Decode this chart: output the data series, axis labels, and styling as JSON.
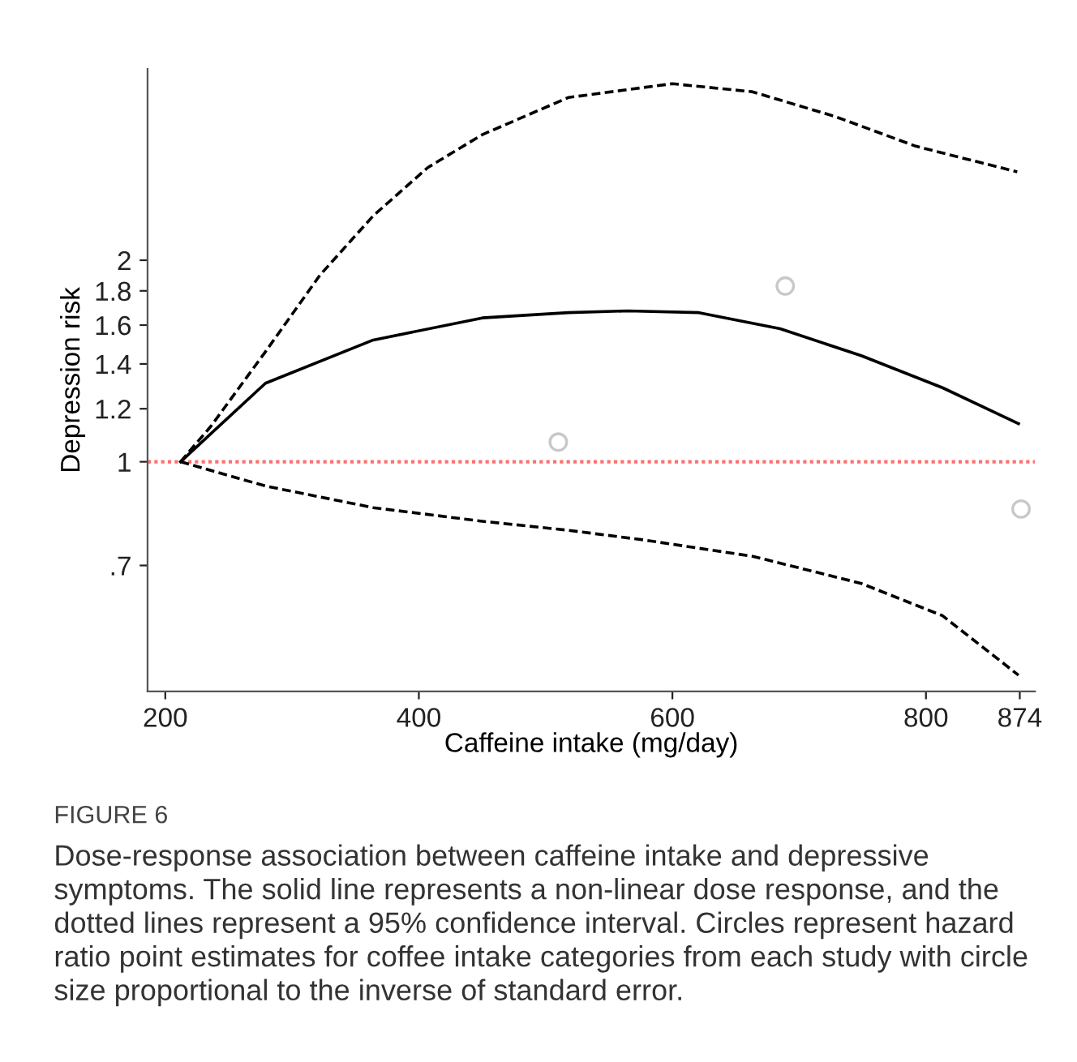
{
  "chart_data": {
    "type": "line",
    "xlabel": "Caffeine intake (mg/day)",
    "ylabel": "Depression risk",
    "log": "y",
    "xlim": [
      186,
      886
    ],
    "ylim": [
      0.454,
      3.86
    ],
    "xticks": [
      200,
      400,
      600,
      800,
      874
    ],
    "yticks": [
      {
        "value": 0.7,
        "label": ".7"
      },
      1,
      1.2,
      1.4,
      1.6,
      1.8,
      2
    ],
    "grid": false,
    "legend": false,
    "series": [
      {
        "color": "#000000",
        "line_style": "solid",
        "marker": "none",
        "x": [
          212,
          279,
          364,
          450,
          518,
          565,
          621,
          685,
          749,
          813,
          873
        ],
        "values": [
          1,
          1.31,
          1.52,
          1.64,
          1.67,
          1.68,
          1.67,
          1.58,
          1.44,
          1.29,
          1.14
        ]
      },
      {
        "color": "#000000",
        "line_style": "dashed",
        "marker": "none",
        "x": [
          212,
          236,
          279,
          322,
          364,
          407,
          450,
          518,
          600,
          663,
          728,
          792,
          872
        ],
        "values": [
          1,
          1.13,
          1.46,
          1.9,
          2.33,
          2.75,
          3.08,
          3.5,
          3.67,
          3.57,
          3.28,
          2.96,
          2.71
        ]
      },
      {
        "color": "#000000",
        "line_style": "dashed",
        "marker": "none",
        "x": [
          212,
          279,
          364,
          450,
          518,
          578,
          664,
          749,
          813,
          873
        ],
        "values": [
          1,
          0.92,
          0.854,
          0.815,
          0.79,
          0.764,
          0.722,
          0.658,
          0.589,
          0.48
        ]
      },
      {
        "type": "scatter",
        "color": "#c8c8c8",
        "marker": "circle",
        "x": [
          510,
          689,
          875
        ],
        "values": [
          1.07,
          1.83,
          0.85
        ]
      }
    ],
    "ref_lines": [
      {
        "axis": "y",
        "value": 1,
        "color": "#ff7070",
        "line_style": "dotted"
      }
    ],
    "annotations": [
      "FIGURE 6",
      "Dose-response association between caffeine intake and depressive symptoms. The solid line represents a non-linear dose response, and the dotted lines represent a 95% confidence interval. Circles represent hazard ratio point estimates for coffee intake categories from each study with circle size proportional to the inverse of standard error."
    ]
  }
}
